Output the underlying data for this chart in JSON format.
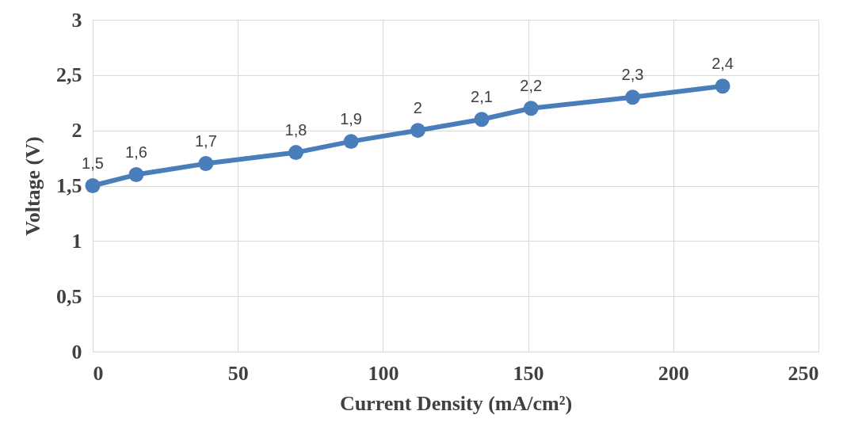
{
  "chart_data": {
    "type": "line",
    "xlabel": "Current Density (mA/cm²)",
    "ylabel": "Voltage (V)",
    "x": [
      0,
      15,
      39,
      70,
      89,
      112,
      134,
      151,
      186,
      217
    ],
    "series": [
      {
        "color": "#4a7ebb",
        "values": [
          1.5,
          1.6,
          1.7,
          1.8,
          1.9,
          2.0,
          2.1,
          2.2,
          2.3,
          2.4
        ],
        "value_labels": [
          "1,5",
          "1,6",
          "1,7",
          "1,8",
          "1,9",
          "2",
          "2,1",
          "2,2",
          "2,3",
          "2,4"
        ]
      }
    ],
    "xlim": [
      0,
      250
    ],
    "xticks": [
      0,
      50,
      100,
      150,
      200,
      250
    ],
    "ylim": [
      0,
      3
    ],
    "yticks": [
      0,
      {
        "value": 0.5,
        "label": "0,5"
      },
      1,
      {
        "value": 1.5,
        "label": "1,5"
      },
      2,
      {
        "value": 2.5,
        "label": "2,5"
      },
      3
    ],
    "grid": true,
    "marker": "circle",
    "line_style": "solid"
  }
}
